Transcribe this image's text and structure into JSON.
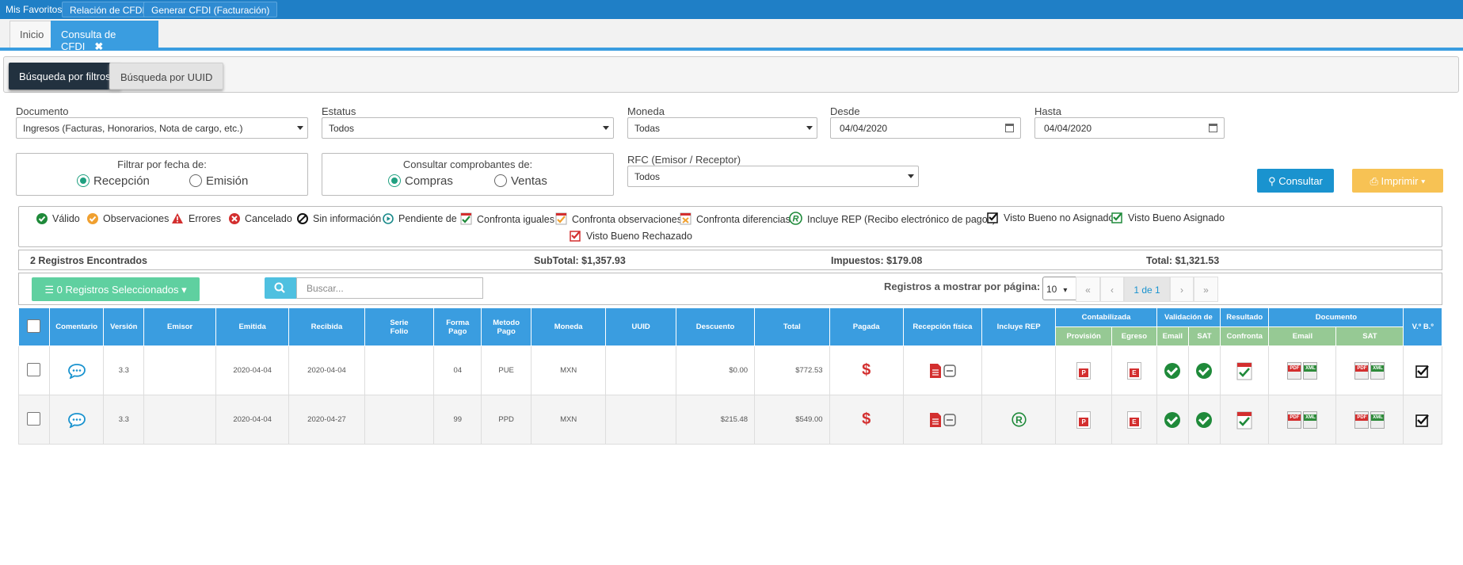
{
  "topbar": {
    "label": "Mis Favoritos:",
    "fav1": "Relación de CFDIs",
    "fav2": "Generar CFDI (Facturación)"
  },
  "tabs": [
    {
      "label": "Inicio"
    },
    {
      "label": "Consulta de CFDI"
    }
  ],
  "search_modes": {
    "filters": "Búsqueda por filtros",
    "uuid": "Búsqueda por UUID"
  },
  "filters": {
    "documento": {
      "label": "Documento",
      "value": "Ingresos (Facturas, Honorarios, Nota de cargo, etc.)"
    },
    "estatus": {
      "label": "Estatus",
      "value": "Todos"
    },
    "moneda": {
      "label": "Moneda",
      "value": "Todas"
    },
    "desde": {
      "label": "Desde",
      "value": "04/04/2020"
    },
    "hasta": {
      "label": "Hasta",
      "value": "04/04/2020"
    },
    "filtrar_fecha": {
      "title": "Filtrar por fecha de:",
      "opt1": "Recepción",
      "opt2": "Emisión",
      "selected": "Recepción"
    },
    "consultar_de": {
      "title": "Consultar comprobantes de:",
      "opt1": "Compras",
      "opt2": "Ventas",
      "selected": "Compras"
    },
    "rfc": {
      "label": "RFC (Emisor / Receptor)",
      "value": "Todos"
    }
  },
  "actions": {
    "consultar": "Consultar",
    "imprimir": "Imprimir"
  },
  "legend": {
    "valido": "Válido",
    "observaciones": "Observaciones",
    "errores": "Errores",
    "cancelado": "Cancelado",
    "sin_info": "Sin información",
    "pendiente": "Pendiente de",
    "conf_iguales": "Confronta iguales",
    "conf_obs": "Confronta observaciones",
    "conf_dif": "Confronta diferencias",
    "rep": "Incluye REP (Recibo electrónico de pagos)",
    "vb_no": "Visto Bueno no Asignado",
    "vb_si": "Visto Bueno Asignado",
    "vb_rech": "Visto Bueno Rechazado"
  },
  "totals": {
    "registros": "2 Registros Encontrados",
    "subtotal": "SubTotal: $1,357.93",
    "impuestos": "Impuestos: $179.08",
    "total": "Total: $1,321.53"
  },
  "toolbar": {
    "seleccionados": "0 Registros Seleccionados",
    "search_placeholder": "Buscar...",
    "per_page_label": "Registros a mostrar por página:",
    "per_page": "10",
    "page": "1 de 1",
    "first": "«",
    "prev": "‹",
    "next": "›",
    "last": "»"
  },
  "table": {
    "headers": {
      "comentario": "Comentario",
      "version": "Versión",
      "emisor": "Emisor",
      "emitida": "Emitida",
      "recibida": "Recibida",
      "serie": "Serie",
      "folio": "Folio",
      "forma": "Forma",
      "forma2": "Pago",
      "metodo": "Metodo",
      "metodo2": "Pago",
      "moneda": "Moneda",
      "uuid": "UUID",
      "descuento": "Descuento",
      "total": "Total",
      "pagada": "Pagada",
      "recepcion": "Recepción física",
      "rep": "Incluye REP",
      "contabilizada": "Contabilizada",
      "validacion": "Validación de",
      "resultado": "Resultado",
      "documento": "Documento",
      "vb": "V.º B.º",
      "provision": "Provisión",
      "egreso": "Egreso",
      "email": "Email",
      "sat": "SAT",
      "confronta": "Confronta",
      "doc_email": "Email",
      "doc_sat": "SAT"
    },
    "rows": [
      {
        "version": "3.3",
        "emisor": "",
        "emitida": "2020-04-04",
        "recibida": "2020-04-04",
        "serie": "",
        "forma": "04",
        "metodo": "PUE",
        "moneda": "MXN",
        "uuid": "",
        "descuento": "$0.00",
        "total": "$772.53"
      },
      {
        "version": "3.3",
        "emisor": "",
        "emitida": "2020-04-04",
        "recibida": "2020-04-27",
        "serie": "",
        "forma": "99",
        "metodo": "PPD",
        "moneda": "MXN",
        "uuid": "",
        "descuento": "$215.48",
        "total": "$549.00"
      }
    ]
  },
  "colors": {
    "primary": "#3a9de0",
    "topbar": "#1f7fc6",
    "success": "#1f8a3a",
    "danger": "#d32f2f",
    "warning": "#f7c254"
  }
}
